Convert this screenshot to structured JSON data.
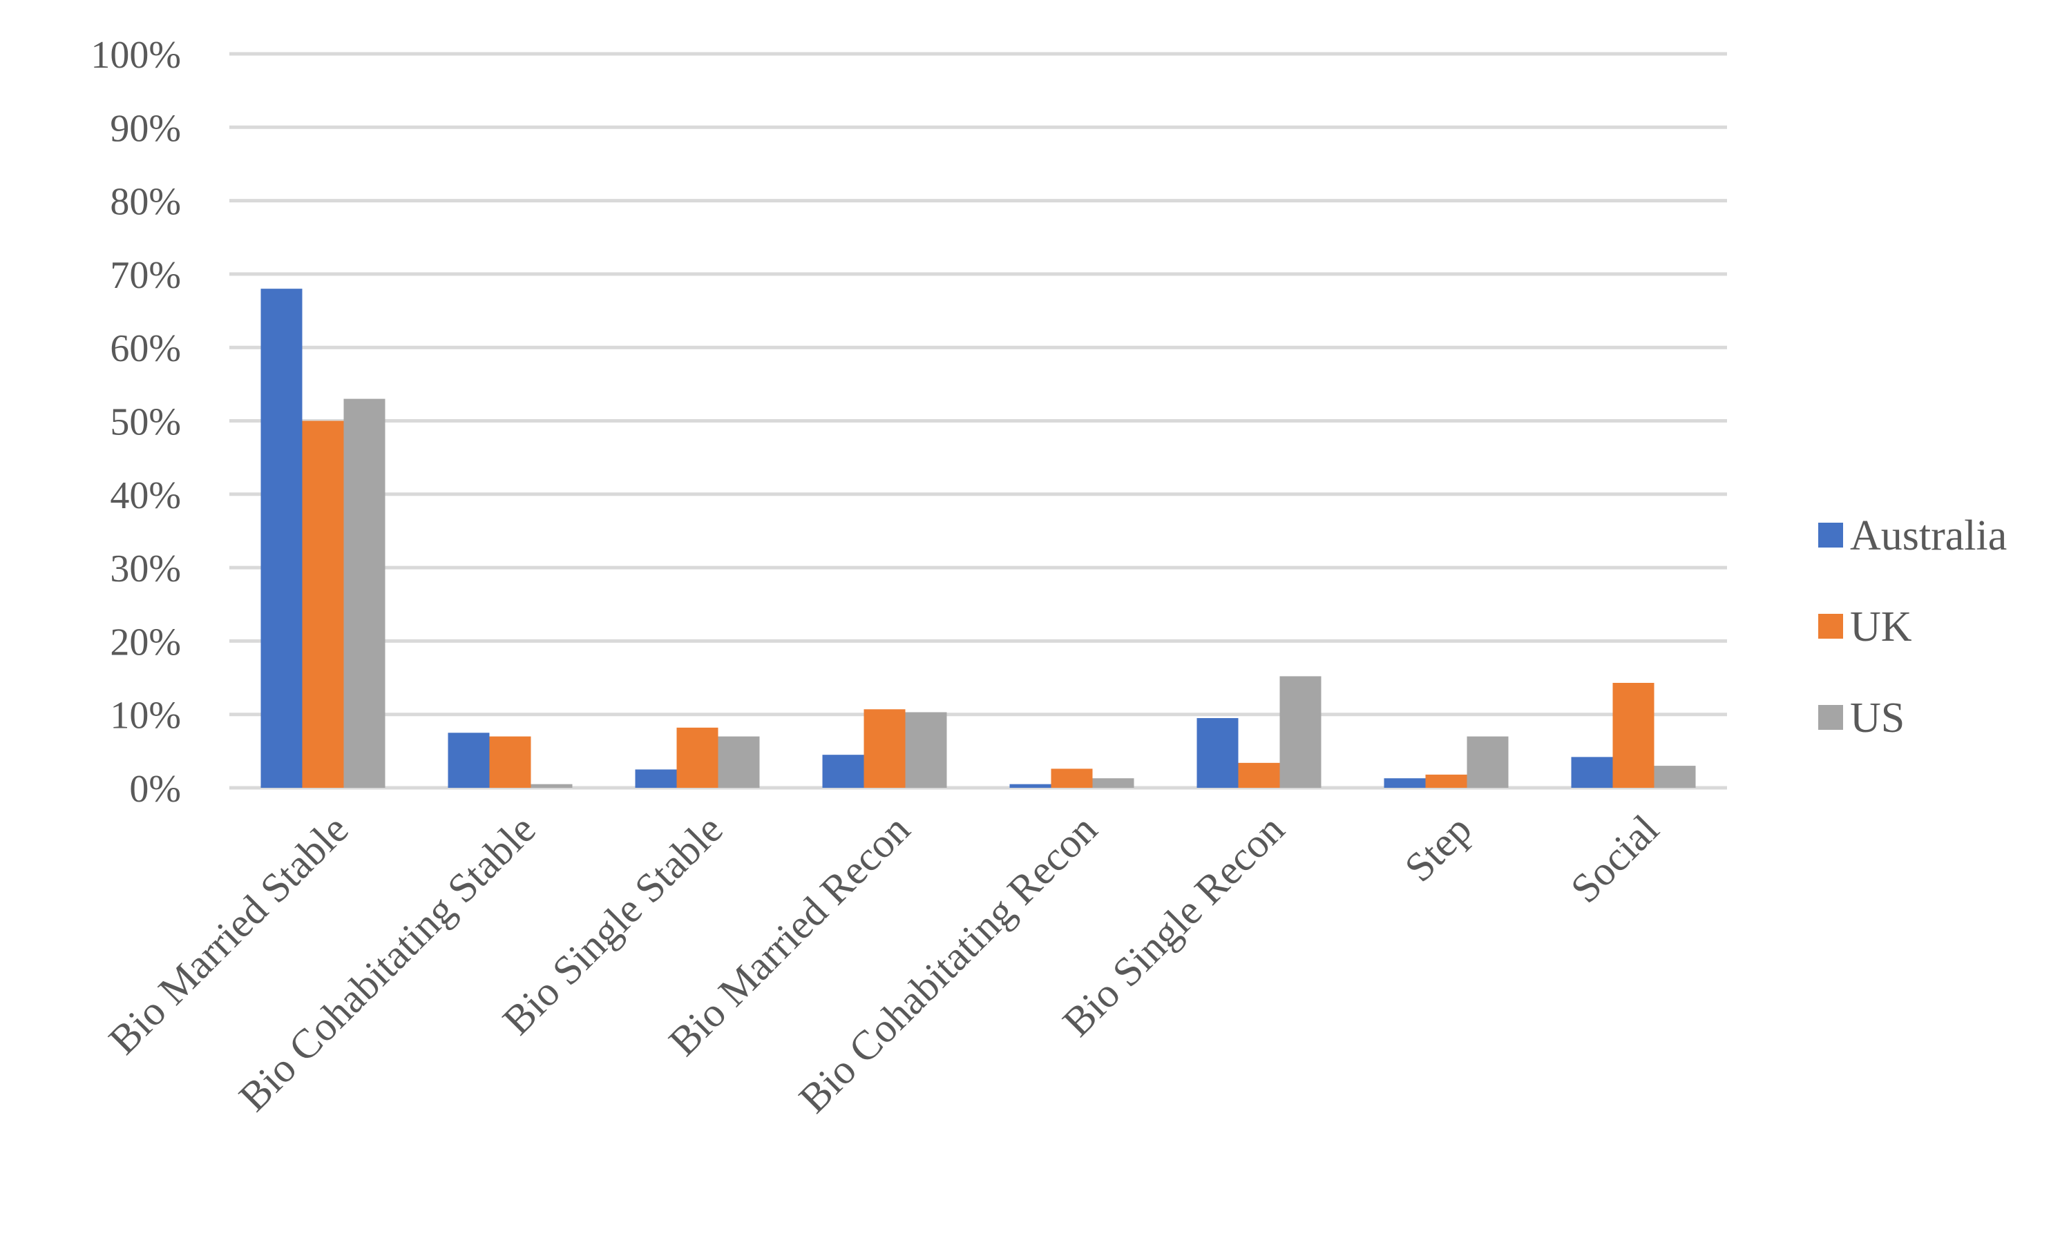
{
  "chart_data": {
    "type": "bar",
    "title": "",
    "xlabel": "",
    "ylabel": "",
    "ylim": [
      0,
      100
    ],
    "y_ticks": [
      "0%",
      "10%",
      "20%",
      "30%",
      "40%",
      "50%",
      "60%",
      "70%",
      "80%",
      "90%",
      "100%"
    ],
    "categories": [
      "Bio Married Stable",
      "Bio Cohabitating Stable",
      "Bio Single Stable",
      "Bio Married Recon",
      "Bio Cohabitating Recon",
      "Bio Single Recon",
      "Step",
      "Social"
    ],
    "series": [
      {
        "name": "Australia",
        "color": "#4472c4",
        "values": [
          68,
          7.5,
          2.5,
          4.5,
          0.5,
          9.5,
          1.3,
          4.2
        ]
      },
      {
        "name": "UK",
        "color": "#ed7d31",
        "values": [
          50,
          7,
          8.2,
          10.7,
          2.6,
          3.4,
          1.8,
          14.3
        ]
      },
      {
        "name": "US",
        "color": "#a5a5a5",
        "values": [
          53,
          0.5,
          7,
          10.3,
          1.3,
          15.2,
          7,
          3
        ]
      }
    ],
    "grid": true,
    "legend_position": "right"
  }
}
